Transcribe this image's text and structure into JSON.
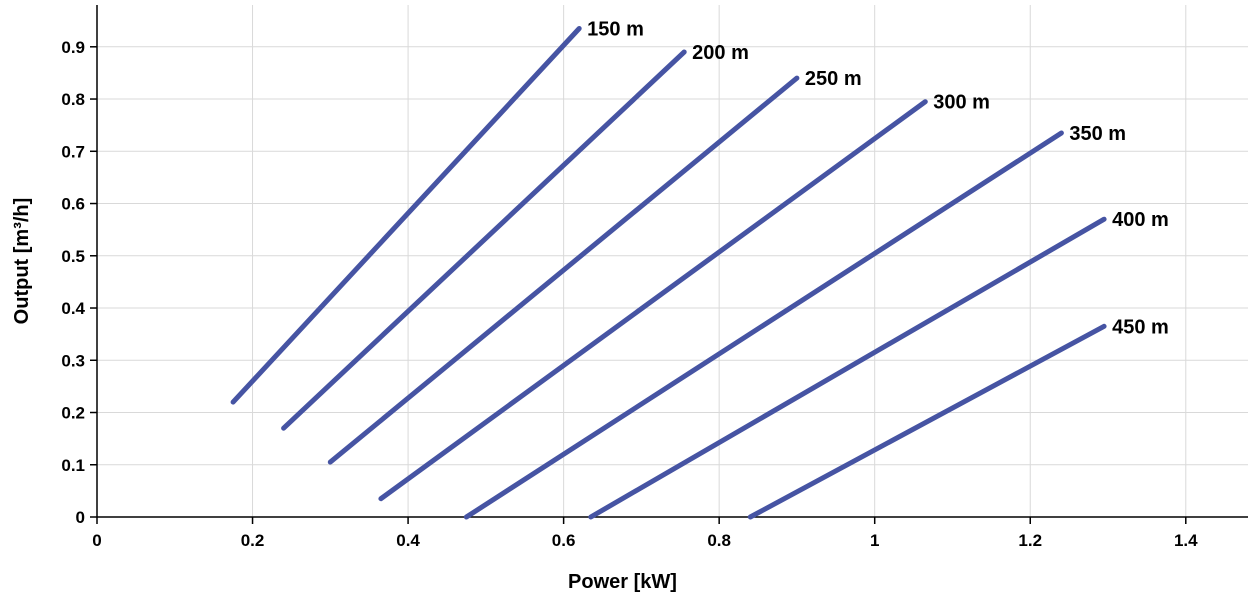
{
  "chart_data": {
    "type": "line",
    "xlabel": "Power [kW]",
    "ylabel": "Output [m³/h]",
    "xlim": [
      0,
      1.48
    ],
    "ylim": [
      0,
      0.98
    ],
    "xticks": [
      {
        "value": 0,
        "label": "0"
      },
      {
        "value": 0.2,
        "label": "0.2"
      },
      {
        "value": 0.4,
        "label": "0.4"
      },
      {
        "value": 0.6,
        "label": "0.6"
      },
      {
        "value": 0.8,
        "label": "0.8"
      },
      {
        "value": 1.0,
        "label": "1"
      },
      {
        "value": 1.2,
        "label": "1.2"
      },
      {
        "value": 1.4,
        "label": "1.4"
      }
    ],
    "yticks": [
      {
        "value": 0,
        "label": "0"
      },
      {
        "value": 0.1,
        "label": "0.1"
      },
      {
        "value": 0.2,
        "label": "0.2"
      },
      {
        "value": 0.3,
        "label": "0.3"
      },
      {
        "value": 0.4,
        "label": "0.4"
      },
      {
        "value": 0.5,
        "label": "0.5"
      },
      {
        "value": 0.6,
        "label": "0.6"
      },
      {
        "value": 0.7,
        "label": "0.7"
      },
      {
        "value": 0.8,
        "label": "0.8"
      },
      {
        "value": 0.9,
        "label": "0.9"
      }
    ],
    "grid": true,
    "line_color": "#4654a3",
    "series": [
      {
        "name": "150 m",
        "x": [
          0.175,
          0.62
        ],
        "y": [
          0.22,
          0.935
        ]
      },
      {
        "name": "200 m",
        "x": [
          0.24,
          0.755
        ],
        "y": [
          0.17,
          0.89
        ]
      },
      {
        "name": "250 m",
        "x": [
          0.3,
          0.9
        ],
        "y": [
          0.105,
          0.84
        ]
      },
      {
        "name": "300 m",
        "x": [
          0.365,
          1.065
        ],
        "y": [
          0.035,
          0.795
        ]
      },
      {
        "name": "350 m",
        "x": [
          0.475,
          1.24
        ],
        "y": [
          0.0,
          0.735
        ]
      },
      {
        "name": "400 m",
        "x": [
          0.635,
          1.295
        ],
        "y": [
          0.0,
          0.57
        ]
      },
      {
        "name": "450 m",
        "x": [
          0.84,
          1.295
        ],
        "y": [
          0.0,
          0.365
        ]
      }
    ]
  }
}
